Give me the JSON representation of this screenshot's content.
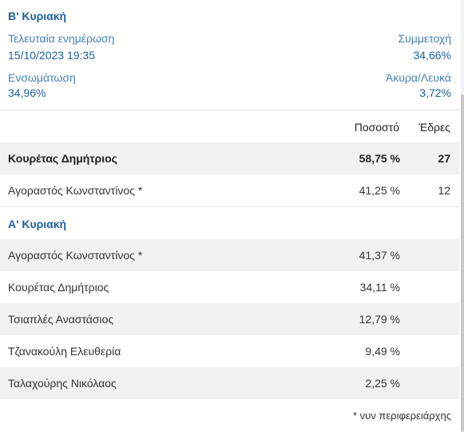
{
  "round_b": {
    "title": "Β' Κυριακή",
    "last_update_label": "Τελευταία ενημέρωση",
    "last_update_value": "15/10/2023 19:35",
    "turnout_label": "Συμμετοχή",
    "turnout_value": "34,66%",
    "integration_label": "Ενσωμάτωση",
    "integration_value": "34,96%",
    "invalid_label": "Άκυρα/Λευκά",
    "invalid_value": "3,72%",
    "header_pct": "Ποσοστό",
    "header_seats": "Έδρες",
    "candidates": [
      {
        "name": "Κουρέτας Δημήτριος",
        "pct": "58,75 %",
        "seats": "27"
      },
      {
        "name": "Αγοραστός Κωνσταντίνος *",
        "pct": "41,25 %",
        "seats": "12"
      }
    ]
  },
  "round_a": {
    "title": "Α' Κυριακή",
    "candidates": [
      {
        "name": "Αγοραστός Κωνσταντίνος *",
        "pct": "41,37 %"
      },
      {
        "name": "Κουρέτας Δημήτριος",
        "pct": "34,11 %"
      },
      {
        "name": "Τσιαπλές Αναστάσιος",
        "pct": "12,79 %"
      },
      {
        "name": "Τζανακούλη Ελευθερία",
        "pct": "9,49 %"
      },
      {
        "name": "Ταλαχούρης Νικόλαος",
        "pct": "2,25 %"
      }
    ]
  },
  "footnote": "* νυν περιφερειάρχης"
}
